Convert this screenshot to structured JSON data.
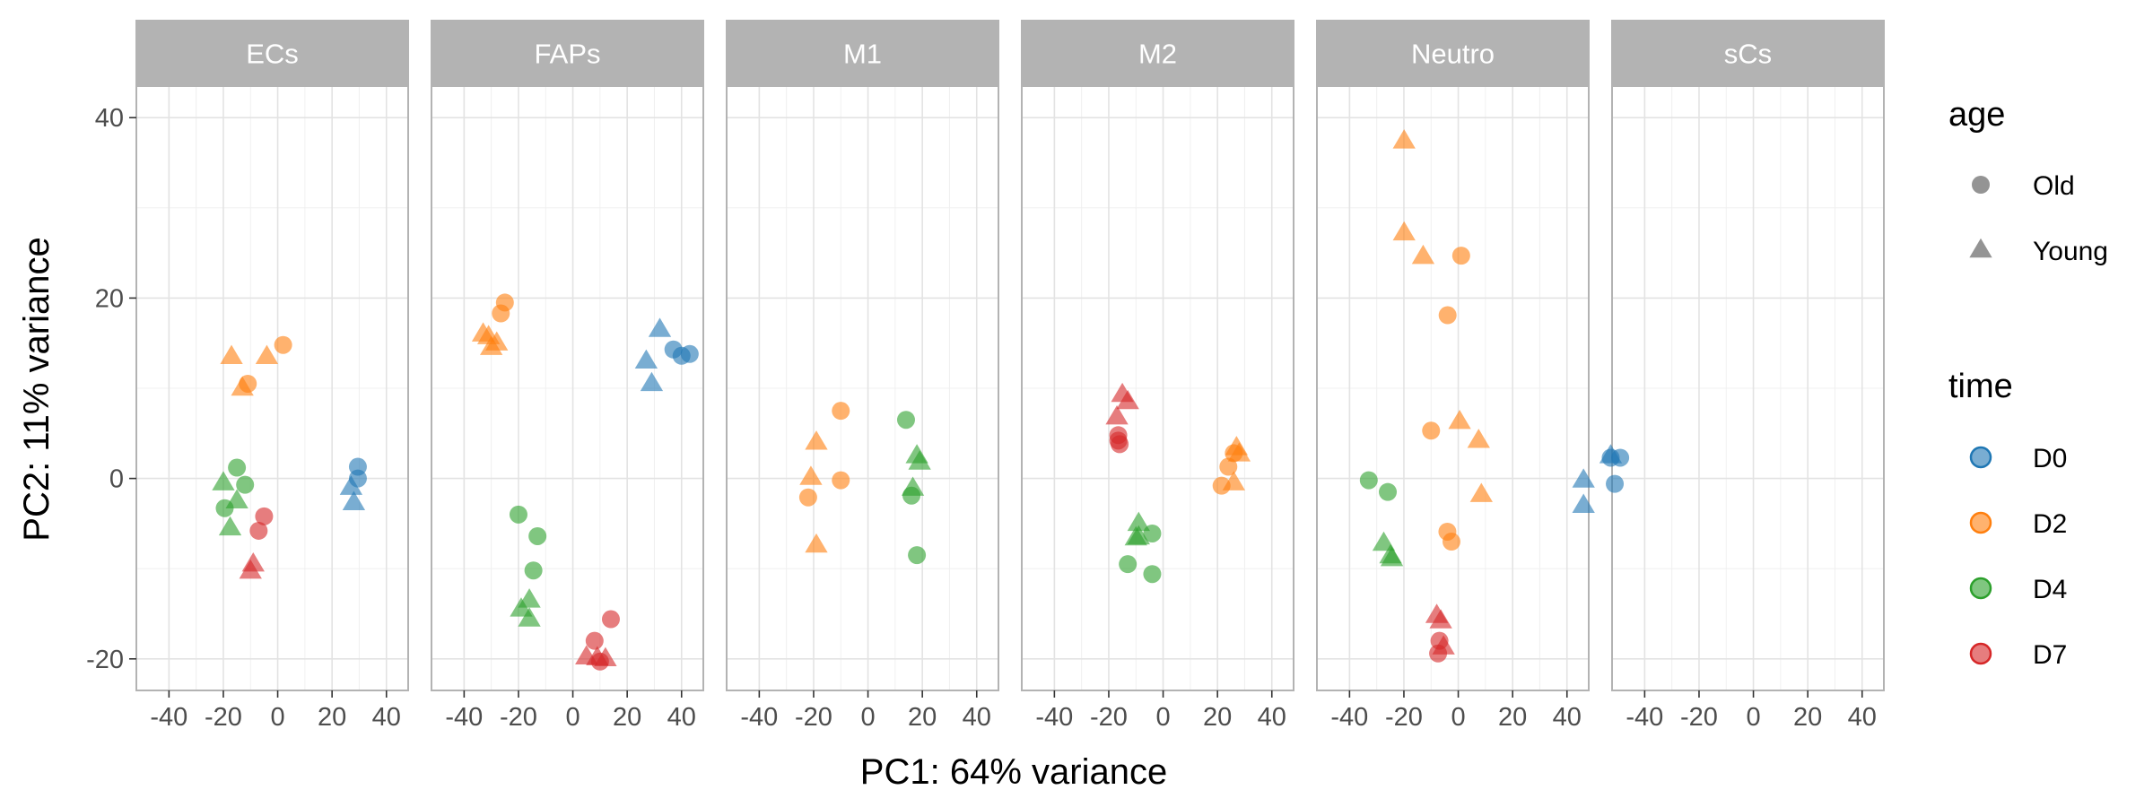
{
  "chart_data": {
    "type": "scatter",
    "xlabel": "PC1: 64% variance",
    "ylabel": "PC2: 11% variance",
    "xlim": [
      -52,
      48
    ],
    "ylim": [
      -23.5,
      43.5
    ],
    "xticks": [
      -40,
      -20,
      0,
      20,
      40
    ],
    "xtick_labels": [
      "-40",
      "-20",
      "0",
      "20",
      "40"
    ],
    "yticks": [
      -20,
      0,
      20,
      40
    ],
    "ytick_labels": [
      "-20",
      "0",
      "20",
      "40"
    ],
    "grid": true,
    "panels": [
      {
        "name": "ECs",
        "offset": 0
      },
      {
        "name": "FAPs",
        "offset": 0
      },
      {
        "name": "M1",
        "offset": 0
      },
      {
        "name": "M2",
        "offset": 0
      },
      {
        "name": "Neutro",
        "offset": 0
      },
      {
        "name": "sCs",
        "offset": 104
      }
    ],
    "legends": {
      "shape": {
        "title": "age",
        "entries": [
          {
            "label": "Old",
            "shape": "circle"
          },
          {
            "label": "Young",
            "shape": "triangle"
          }
        ]
      },
      "color": {
        "title": "time",
        "entries": [
          {
            "label": "D0",
            "color": "#1f77b4"
          },
          {
            "label": "D2",
            "color": "#ff7f0e"
          },
          {
            "label": "D4",
            "color": "#2ca02c"
          },
          {
            "label": "D7",
            "color": "#d62728"
          }
        ]
      },
      "position": "right"
    },
    "points": [
      {
        "panel": "ECs",
        "x": -17,
        "y": 13.5,
        "age": "Young",
        "time": "D2"
      },
      {
        "panel": "ECs",
        "x": -4,
        "y": 13.5,
        "age": "Young",
        "time": "D2"
      },
      {
        "panel": "ECs",
        "x": 2,
        "y": 14.8,
        "age": "Old",
        "time": "D2"
      },
      {
        "panel": "ECs",
        "x": -11,
        "y": 10.5,
        "age": "Old",
        "time": "D2"
      },
      {
        "panel": "ECs",
        "x": -13,
        "y": 10,
        "age": "Young",
        "time": "D2"
      },
      {
        "panel": "ECs",
        "x": -15,
        "y": 1.2,
        "age": "Old",
        "time": "D4"
      },
      {
        "panel": "ECs",
        "x": -20,
        "y": -0.5,
        "age": "Young",
        "time": "D4"
      },
      {
        "panel": "ECs",
        "x": -12,
        "y": -0.7,
        "age": "Old",
        "time": "D4"
      },
      {
        "panel": "ECs",
        "x": -15,
        "y": -2.5,
        "age": "Young",
        "time": "D4"
      },
      {
        "panel": "ECs",
        "x": -19.5,
        "y": -3.3,
        "age": "Old",
        "time": "D4"
      },
      {
        "panel": "ECs",
        "x": -17.5,
        "y": -5.5,
        "age": "Young",
        "time": "D4"
      },
      {
        "panel": "ECs",
        "x": -5,
        "y": -4.2,
        "age": "Old",
        "time": "D7"
      },
      {
        "panel": "ECs",
        "x": -7,
        "y": -5.8,
        "age": "Old",
        "time": "D7"
      },
      {
        "panel": "ECs",
        "x": -9,
        "y": -9.5,
        "age": "Young",
        "time": "D7"
      },
      {
        "panel": "ECs",
        "x": -10,
        "y": -10.3,
        "age": "Young",
        "time": "D7"
      },
      {
        "panel": "ECs",
        "x": 29.5,
        "y": 1.3,
        "age": "Old",
        "time": "D0"
      },
      {
        "panel": "ECs",
        "x": 29.5,
        "y": 0,
        "age": "Old",
        "time": "D0"
      },
      {
        "panel": "ECs",
        "x": 27,
        "y": -1,
        "age": "Young",
        "time": "D0"
      },
      {
        "panel": "ECs",
        "x": 28,
        "y": -2.7,
        "age": "Young",
        "time": "D0"
      },
      {
        "panel": "FAPs",
        "x": -25,
        "y": 19.5,
        "age": "Old",
        "time": "D2"
      },
      {
        "panel": "FAPs",
        "x": -26.5,
        "y": 18.3,
        "age": "Old",
        "time": "D2"
      },
      {
        "panel": "FAPs",
        "x": -33,
        "y": 16,
        "age": "Young",
        "time": "D2"
      },
      {
        "panel": "FAPs",
        "x": -31,
        "y": 15.7,
        "age": "Young",
        "time": "D2"
      },
      {
        "panel": "FAPs",
        "x": -28,
        "y": 15,
        "age": "Young",
        "time": "D2"
      },
      {
        "panel": "FAPs",
        "x": -30,
        "y": 14.5,
        "age": "Young",
        "time": "D2"
      },
      {
        "panel": "FAPs",
        "x": 32,
        "y": 16.5,
        "age": "Young",
        "time": "D0"
      },
      {
        "panel": "FAPs",
        "x": 37,
        "y": 14.3,
        "age": "Old",
        "time": "D0"
      },
      {
        "panel": "FAPs",
        "x": 43,
        "y": 13.8,
        "age": "Old",
        "time": "D0"
      },
      {
        "panel": "FAPs",
        "x": 40,
        "y": 13.6,
        "age": "Old",
        "time": "D0"
      },
      {
        "panel": "FAPs",
        "x": 27,
        "y": 13,
        "age": "Young",
        "time": "D0"
      },
      {
        "panel": "FAPs",
        "x": 29,
        "y": 10.5,
        "age": "Young",
        "time": "D0"
      },
      {
        "panel": "FAPs",
        "x": -20,
        "y": -4,
        "age": "Old",
        "time": "D4"
      },
      {
        "panel": "FAPs",
        "x": -13,
        "y": -6.4,
        "age": "Old",
        "time": "D4"
      },
      {
        "panel": "FAPs",
        "x": -14.5,
        "y": -10.2,
        "age": "Old",
        "time": "D4"
      },
      {
        "panel": "FAPs",
        "x": -16,
        "y": -13.5,
        "age": "Young",
        "time": "D4"
      },
      {
        "panel": "FAPs",
        "x": -19,
        "y": -14.5,
        "age": "Young",
        "time": "D4"
      },
      {
        "panel": "FAPs",
        "x": -16,
        "y": -15.6,
        "age": "Young",
        "time": "D4"
      },
      {
        "panel": "FAPs",
        "x": 14,
        "y": -15.6,
        "age": "Old",
        "time": "D7"
      },
      {
        "panel": "FAPs",
        "x": 8,
        "y": -18,
        "age": "Old",
        "time": "D7"
      },
      {
        "panel": "FAPs",
        "x": 5,
        "y": -19.8,
        "age": "Young",
        "time": "D7"
      },
      {
        "panel": "FAPs",
        "x": 9,
        "y": -19.9,
        "age": "Young",
        "time": "D7"
      },
      {
        "panel": "FAPs",
        "x": 12,
        "y": -20,
        "age": "Young",
        "time": "D7"
      },
      {
        "panel": "FAPs",
        "x": 10,
        "y": -20.3,
        "age": "Old",
        "time": "D7"
      },
      {
        "panel": "M1",
        "x": -10,
        "y": 7.5,
        "age": "Old",
        "time": "D2"
      },
      {
        "panel": "M1",
        "x": -19,
        "y": 4,
        "age": "Young",
        "time": "D2"
      },
      {
        "panel": "M1",
        "x": -21,
        "y": 0.1,
        "age": "Young",
        "time": "D2"
      },
      {
        "panel": "M1",
        "x": -10,
        "y": -0.2,
        "age": "Old",
        "time": "D2"
      },
      {
        "panel": "M1",
        "x": -22,
        "y": -2.1,
        "age": "Old",
        "time": "D2"
      },
      {
        "panel": "M1",
        "x": -19,
        "y": -7.4,
        "age": "Young",
        "time": "D2"
      },
      {
        "panel": "M1",
        "x": 14,
        "y": 6.5,
        "age": "Old",
        "time": "D4"
      },
      {
        "panel": "M1",
        "x": 18,
        "y": 2.5,
        "age": "Young",
        "time": "D4"
      },
      {
        "panel": "M1",
        "x": 19,
        "y": 1.8,
        "age": "Young",
        "time": "D4"
      },
      {
        "panel": "M1",
        "x": 16.5,
        "y": -1.1,
        "age": "Young",
        "time": "D4"
      },
      {
        "panel": "M1",
        "x": 16,
        "y": -1.9,
        "age": "Old",
        "time": "D4"
      },
      {
        "panel": "M1",
        "x": 18,
        "y": -8.5,
        "age": "Old",
        "time": "D4"
      },
      {
        "panel": "M2",
        "x": -15,
        "y": 9.3,
        "age": "Young",
        "time": "D7"
      },
      {
        "panel": "M2",
        "x": -13,
        "y": 8.5,
        "age": "Young",
        "time": "D7"
      },
      {
        "panel": "M2",
        "x": -17,
        "y": 6.8,
        "age": "Young",
        "time": "D7"
      },
      {
        "panel": "M2",
        "x": -16.5,
        "y": 4.8,
        "age": "Old",
        "time": "D7"
      },
      {
        "panel": "M2",
        "x": -16.5,
        "y": 4.2,
        "age": "Old",
        "time": "D7"
      },
      {
        "panel": "M2",
        "x": -16,
        "y": 3.8,
        "age": "Old",
        "time": "D7"
      },
      {
        "panel": "M2",
        "x": 27,
        "y": 3.4,
        "age": "Young",
        "time": "D2"
      },
      {
        "panel": "M2",
        "x": 26,
        "y": 2.8,
        "age": "Old",
        "time": "D2"
      },
      {
        "panel": "M2",
        "x": 28,
        "y": 2.7,
        "age": "Young",
        "time": "D2"
      },
      {
        "panel": "M2",
        "x": 24,
        "y": 1.3,
        "age": "Old",
        "time": "D2"
      },
      {
        "panel": "M2",
        "x": 21.5,
        "y": -0.8,
        "age": "Old",
        "time": "D2"
      },
      {
        "panel": "M2",
        "x": 26,
        "y": -0.5,
        "age": "Young",
        "time": "D2"
      },
      {
        "panel": "M2",
        "x": -9,
        "y": -5,
        "age": "Young",
        "time": "D4"
      },
      {
        "panel": "M2",
        "x": -9,
        "y": -6.5,
        "age": "Young",
        "time": "D4"
      },
      {
        "panel": "M2",
        "x": -4,
        "y": -6.1,
        "age": "Old",
        "time": "D4"
      },
      {
        "panel": "M2",
        "x": -10,
        "y": -6.6,
        "age": "Young",
        "time": "D4"
      },
      {
        "panel": "M2",
        "x": -13,
        "y": -9.5,
        "age": "Old",
        "time": "D4"
      },
      {
        "panel": "M2",
        "x": -4,
        "y": -10.6,
        "age": "Old",
        "time": "D4"
      },
      {
        "panel": "Neutro",
        "x": -10,
        "y": 5.3,
        "age": "Old",
        "time": "D2"
      },
      {
        "panel": "Neutro",
        "x": 0.5,
        "y": 6.3,
        "age": "Young",
        "time": "D2"
      },
      {
        "panel": "Neutro",
        "x": 7.5,
        "y": 4.2,
        "age": "Young",
        "time": "D2"
      },
      {
        "panel": "Neutro",
        "x": 8.5,
        "y": -1.8,
        "age": "Young",
        "time": "D2"
      },
      {
        "panel": "Neutro",
        "x": -4,
        "y": -5.9,
        "age": "Old",
        "time": "D2"
      },
      {
        "panel": "Neutro",
        "x": -2.5,
        "y": -7,
        "age": "Old",
        "time": "D2"
      },
      {
        "panel": "sCs",
        "x": -24.5,
        "y": 37.4,
        "age": "Young",
        "time": "D2"
      },
      {
        "panel": "sCs",
        "x": -24.5,
        "y": 27.2,
        "age": "Young",
        "time": "D2"
      },
      {
        "panel": "sCs",
        "x": -3.5,
        "y": 24.7,
        "age": "Old",
        "time": "D2"
      },
      {
        "panel": "sCs",
        "x": -17.5,
        "y": 24.6,
        "age": "Young",
        "time": "D2"
      },
      {
        "panel": "sCs",
        "x": -8.5,
        "y": 18.1,
        "age": "Old",
        "time": "D2"
      },
      {
        "panel": "sCs",
        "x": 51.5,
        "y": 2.5,
        "age": "Young",
        "time": "D0"
      },
      {
        "panel": "sCs",
        "x": 55,
        "y": 2.3,
        "age": "Old",
        "time": "D0"
      },
      {
        "panel": "sCs",
        "x": 51.5,
        "y": 2.3,
        "age": "Old",
        "time": "D0"
      },
      {
        "panel": "sCs",
        "x": 41.5,
        "y": -0.2,
        "age": "Young",
        "time": "D0"
      },
      {
        "panel": "sCs",
        "x": 53,
        "y": -0.6,
        "age": "Old",
        "time": "D0"
      },
      {
        "panel": "sCs",
        "x": 41.5,
        "y": -3,
        "age": "Young",
        "time": "D0"
      },
      {
        "panel": "sCs",
        "x": -37.5,
        "y": -0.2,
        "age": "Old",
        "time": "D4"
      },
      {
        "panel": "sCs",
        "x": -30.5,
        "y": -1.5,
        "age": "Old",
        "time": "D4"
      },
      {
        "panel": "sCs",
        "x": -32,
        "y": -7.2,
        "age": "Young",
        "time": "D4"
      },
      {
        "panel": "sCs",
        "x": -29.5,
        "y": -8.6,
        "age": "Young",
        "time": "D4"
      },
      {
        "panel": "sCs",
        "x": -29,
        "y": -8.9,
        "age": "Young",
        "time": "D4"
      },
      {
        "panel": "sCs",
        "x": -12.5,
        "y": -15.2,
        "age": "Young",
        "time": "D7"
      },
      {
        "panel": "sCs",
        "x": -11,
        "y": -15.8,
        "age": "Young",
        "time": "D7"
      },
      {
        "panel": "sCs",
        "x": -11.5,
        "y": -18,
        "age": "Old",
        "time": "D7"
      },
      {
        "panel": "sCs",
        "x": -10,
        "y": -18.7,
        "age": "Young",
        "time": "D7"
      },
      {
        "panel": "sCs",
        "x": -12,
        "y": -19.4,
        "age": "Old",
        "time": "D7"
      }
    ]
  }
}
